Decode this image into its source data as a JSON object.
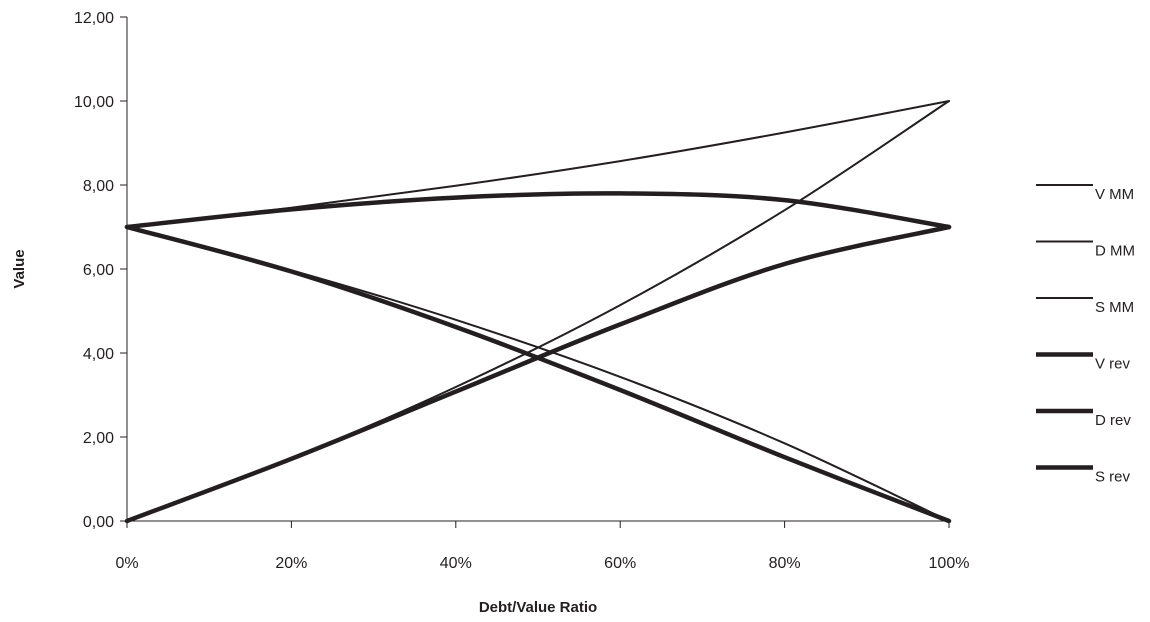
{
  "chart_data": {
    "type": "line",
    "xlabel": "Debt/Value Ratio",
    "ylabel": "Value",
    "xlim": [
      0,
      100
    ],
    "ylim": [
      0,
      12
    ],
    "x_ticks": [
      0,
      20,
      40,
      60,
      80,
      100
    ],
    "x_tick_labels": [
      "0%",
      "20%",
      "40%",
      "60%",
      "80%",
      "100%"
    ],
    "y_ticks": [
      0,
      2,
      4,
      6,
      8,
      10,
      12
    ],
    "y_tick_labels": [
      "0,00",
      "2,00",
      "4,00",
      "6,00",
      "8,00",
      "10,00",
      "12,00"
    ],
    "grid": false,
    "legend_position": "right",
    "x": [
      0,
      20,
      40,
      60,
      80,
      100
    ],
    "series": [
      {
        "name": "V MM",
        "weight": "thin",
        "values": [
          7.0,
          7.46,
          7.98,
          8.57,
          9.25,
          10.0
        ]
      },
      {
        "name": "D MM",
        "weight": "thin",
        "values": [
          0.0,
          1.49,
          3.19,
          5.14,
          7.4,
          10.0
        ]
      },
      {
        "name": "S MM",
        "weight": "thin",
        "values": [
          7.0,
          5.97,
          4.79,
          3.43,
          1.85,
          0.0
        ]
      },
      {
        "name": "V rev",
        "weight": "thick",
        "values": [
          7.0,
          7.42,
          7.7,
          7.8,
          7.64,
          7.0
        ]
      },
      {
        "name": "D rev",
        "weight": "thick",
        "values": [
          0.0,
          1.48,
          3.08,
          4.68,
          6.12,
          7.0
        ]
      },
      {
        "name": "S rev",
        "weight": "thick",
        "values": [
          7.0,
          5.94,
          4.62,
          3.12,
          1.52,
          0.0
        ]
      }
    ]
  }
}
